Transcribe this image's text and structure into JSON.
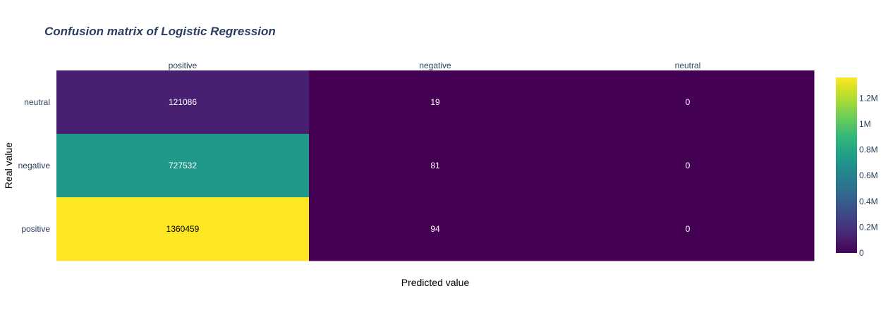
{
  "chart_data": {
    "type": "heatmap",
    "title": "Confusion matrix of Logistic Regression",
    "xlabel": "Predicted value",
    "ylabel": "Real value",
    "x_categories": [
      "positive",
      "negative",
      "neutral"
    ],
    "x_axis_position": "top",
    "y_categories": [
      "neutral",
      "negative",
      "positive"
    ],
    "z": [
      [
        121086,
        19,
        0
      ],
      [
        727532,
        81,
        0
      ],
      [
        1360459,
        94,
        0
      ]
    ],
    "colorscale": "Viridis",
    "zmin": 0,
    "zmax": 1360459,
    "colorbar_ticks": [
      {
        "value": 0,
        "label": "0"
      },
      {
        "value": 200000,
        "label": "0.2M"
      },
      {
        "value": 400000,
        "label": "0.4M"
      },
      {
        "value": 600000,
        "label": "0.6M"
      },
      {
        "value": 800000,
        "label": "0.8M"
      },
      {
        "value": 1000000,
        "label": "1M"
      },
      {
        "value": 1200000,
        "label": "1.2M"
      }
    ],
    "colors": {
      "title": "#2a3f5f",
      "tick": "#2a3f5f",
      "viridis": [
        "#440154",
        "#482878",
        "#3e4989",
        "#31688e",
        "#26828e",
        "#1f9e89",
        "#35b779",
        "#6ece58",
        "#b5de2b",
        "#fde725"
      ]
    }
  }
}
